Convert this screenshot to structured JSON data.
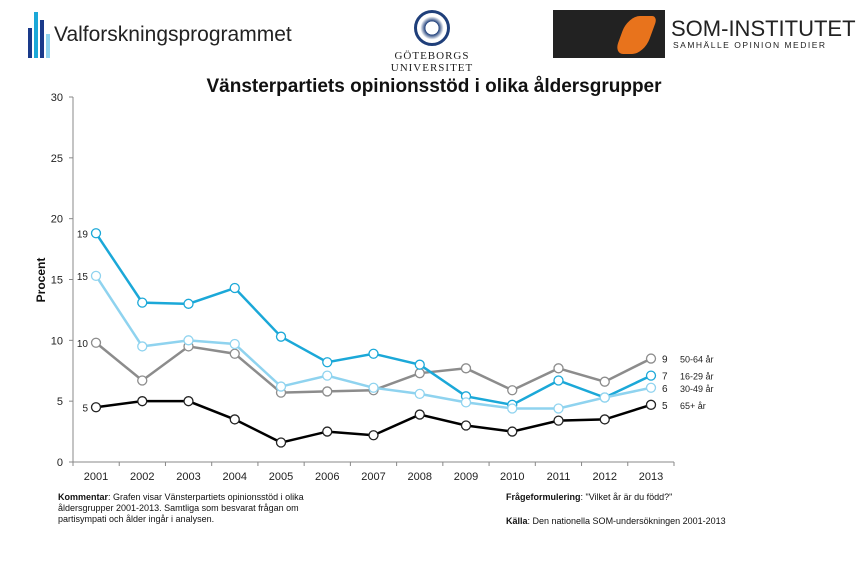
{
  "logos": {
    "valforskning": "Valforskningsprogrammet",
    "gu": "GÖTEBORGS UNIVERSITET",
    "som_title": "SOM-INSTITUTET",
    "som_sub": "SAMHÄLLE OPINION MEDIER"
  },
  "chart_data": {
    "type": "line",
    "title": "Vänsterpartiets opinionsstöd i olika åldersgrupper",
    "xlabel": "",
    "ylabel": "Procent",
    "ylim": [
      0,
      30
    ],
    "yticks": [
      0,
      5,
      10,
      15,
      20,
      25,
      30
    ],
    "x": [
      "2001",
      "2002",
      "2003",
      "2004",
      "2005",
      "2006",
      "2007",
      "2008",
      "2009",
      "2010",
      "2011",
      "2012",
      "2013"
    ],
    "series": [
      {
        "name": "50-64 år",
        "color": "#8c8c8c",
        "start_label": "10",
        "end_label": "9",
        "values": [
          9.8,
          6.7,
          9.5,
          8.9,
          5.7,
          5.8,
          5.9,
          7.3,
          7.7,
          5.9,
          7.7,
          6.6,
          8.5
        ]
      },
      {
        "name": "16-29 år",
        "color": "#1ba8d8",
        "start_label": "19",
        "end_label": "7",
        "values": [
          18.8,
          13.1,
          13.0,
          14.3,
          10.3,
          8.2,
          8.9,
          8.0,
          5.4,
          4.7,
          6.7,
          5.3,
          7.1
        ]
      },
      {
        "name": "30-49 år",
        "color": "#8fd3ef",
        "start_label": "15",
        "end_label": "6",
        "values": [
          15.3,
          9.5,
          10.0,
          9.7,
          6.2,
          7.1,
          6.1,
          5.6,
          4.9,
          4.4,
          4.4,
          5.3,
          6.1
        ]
      },
      {
        "name": "65+ år",
        "color": "#000000",
        "start_label": "5",
        "end_label": "5",
        "values": [
          4.5,
          5.0,
          5.0,
          3.5,
          1.6,
          2.5,
          2.2,
          3.9,
          3.0,
          2.5,
          3.4,
          3.5,
          4.7
        ]
      }
    ]
  },
  "notes": {
    "comment_label": "Kommentar",
    "comment_text": ": Grafen visar Vänsterpartiets opinionsstöd i olika åldersgrupper 2001-2013. Samtliga som besvarat frågan om partisympati och ålder ingår i analysen.",
    "question_label": "Frågeformulering",
    "question_text": ": \"Vilket år är du född?\"",
    "source_label": "Källa",
    "source_text": ": Den nationella SOM-undersökningen 2001-2013"
  }
}
